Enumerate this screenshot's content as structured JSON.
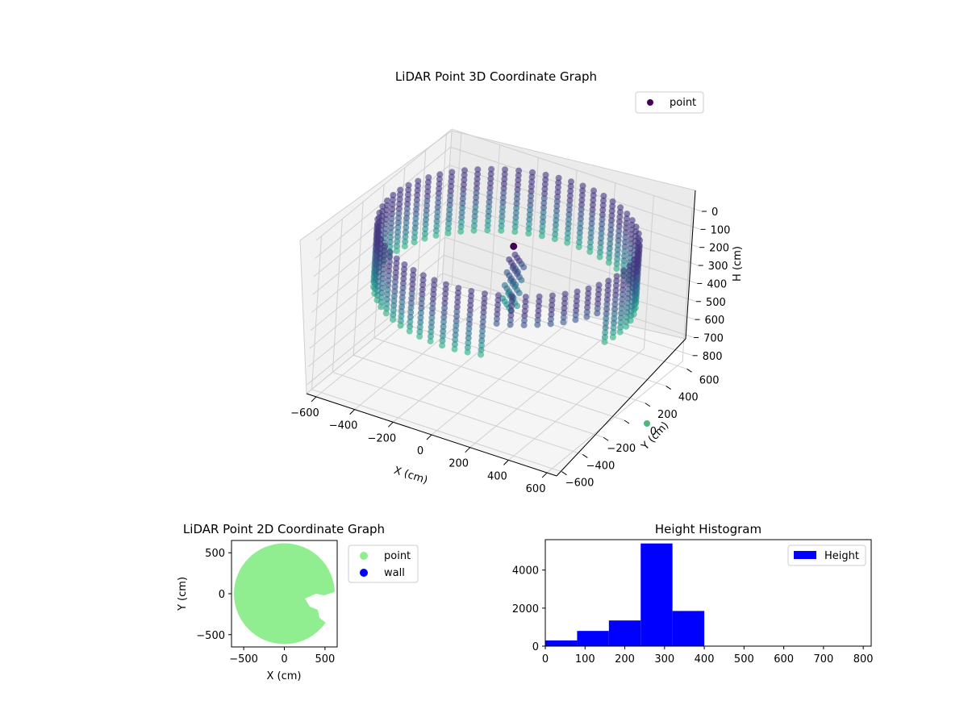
{
  "colors": {
    "viridis_dark": "#440154",
    "viridis_mid": "#3b528b",
    "viridis_teal": "#21918c",
    "viridis_green": "#5ec962",
    "point_green": "#90ee90",
    "wall_blue": "#0000ff",
    "hist_blue": "#0000ff"
  },
  "chart_data": [
    {
      "type": "scatter",
      "projection": "3d",
      "title": "LiDAR Point 3D Coordinate Graph",
      "xlabel": "X (cm)",
      "ylabel": "Y (cm)",
      "zlabel": "H (cm)",
      "xlim": [
        -650,
        650
      ],
      "ylim": [
        -650,
        650
      ],
      "zlim": [
        0,
        850
      ],
      "z_inverted": true,
      "x_ticks": [
        "−600",
        "−400",
        "−200",
        "0",
        "200",
        "400",
        "600"
      ],
      "y_ticks": [
        "−600",
        "−400",
        "−200",
        "0",
        "200",
        "400",
        "600"
      ],
      "z_ticks": [
        "0",
        "100",
        "200",
        "300",
        "400",
        "500",
        "600",
        "700",
        "800"
      ],
      "legend": {
        "placement": "top-right",
        "entries": [
          "point"
        ]
      },
      "colormap": "viridis",
      "description_shape": "ring wall of points radius ~600 cm, heights 0-400 cm, with an opening near +X/-Y and an inner cluster near center",
      "series": [
        {
          "name": "point",
          "ring_radius": 600,
          "h_min": 0,
          "h_max": 400
        }
      ],
      "grid": true
    },
    {
      "type": "scatter",
      "title": "LiDAR Point 2D Coordinate Graph",
      "xlabel": "X (cm)",
      "ylabel": "Y (cm)",
      "xlim": [
        -650,
        650
      ],
      "ylim": [
        -650,
        650
      ],
      "x_ticks": [
        "−500",
        "0",
        "500"
      ],
      "y_ticks": [
        "500",
        "0",
        "−500"
      ],
      "legend": {
        "placement": "outside-right",
        "entries": [
          "point",
          "wall"
        ]
      },
      "series": [
        {
          "name": "point",
          "radius": 620
        },
        {
          "name": "wall"
        }
      ]
    },
    {
      "type": "bar",
      "title": "Height Histogram",
      "xlabel": "",
      "ylabel": "",
      "xlim": [
        0,
        820
      ],
      "ylim": [
        0,
        5600
      ],
      "x_ticks": [
        "0",
        "100",
        "200",
        "300",
        "400",
        "500",
        "600",
        "700",
        "800"
      ],
      "y_ticks": [
        "0",
        "2000",
        "4000"
      ],
      "legend": {
        "placement": "top-right",
        "entries": [
          "Height"
        ]
      },
      "bins": [
        0,
        80,
        160,
        240,
        320,
        400
      ],
      "counts": [
        300,
        800,
        1350,
        5400,
        1850
      ]
    }
  ]
}
